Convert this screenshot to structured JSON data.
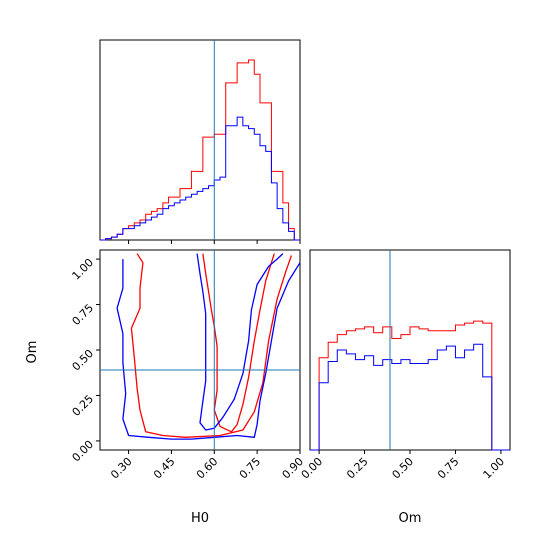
{
  "chart_data": {
    "type": "corner",
    "parameters": [
      "H0",
      "Om"
    ],
    "axis_labels": {
      "x_left": "H0",
      "y_left": "Om",
      "x_right": "Om"
    },
    "truth": {
      "H0": 0.6,
      "Om": 0.39
    },
    "colors": {
      "red": "#ff0000",
      "blue": "#0000ff",
      "truth": "#1f77b4"
    },
    "panels": [
      {
        "name": "H0 marginal histogram",
        "type": "step-histogram",
        "xlim": [
          0.2,
          0.9
        ],
        "bin_edges": [
          0.2,
          0.22,
          0.24,
          0.26,
          0.28,
          0.3,
          0.32,
          0.34,
          0.36,
          0.38,
          0.4,
          0.42,
          0.44,
          0.46,
          0.48,
          0.5,
          0.52,
          0.54,
          0.56,
          0.58,
          0.6,
          0.62,
          0.64,
          0.66,
          0.68,
          0.7,
          0.72,
          0.74,
          0.76,
          0.78,
          0.8,
          0.82,
          0.84,
          0.86,
          0.88,
          0.9
        ],
        "series": [
          {
            "name": "red",
            "color": "#ff0000",
            "values": [
              0,
              0.5,
              1,
              2,
              4,
              5,
              6,
              7,
              9,
              10,
              11,
              13,
              15,
              15,
              18,
              18,
              24,
              24,
              36,
              36,
              37,
              37,
              55,
              55,
              62,
              62,
              63,
              58,
              48,
              48,
              24,
              24,
              13,
              4,
              0
            ]
          },
          {
            "name": "blue",
            "color": "#0000ff",
            "values": [
              0,
              0.5,
              1,
              2,
              4,
              4,
              5,
              6,
              7,
              8,
              9,
              11,
              12,
              13,
              14,
              15,
              16,
              17,
              18,
              19,
              21,
              22,
              40,
              40,
              43,
              40,
              39,
              37,
              33,
              31,
              20,
              11,
              6,
              3,
              0
            ]
          }
        ]
      },
      {
        "name": "Om marginal histogram",
        "type": "step-histogram",
        "xlim": [
          -0.05,
          1.05
        ],
        "bin_edges": [
          -0.05,
          0.0,
          0.05,
          0.1,
          0.15,
          0.2,
          0.25,
          0.3,
          0.35,
          0.4,
          0.45,
          0.5,
          0.55,
          0.6,
          0.65,
          0.7,
          0.75,
          0.8,
          0.85,
          0.9,
          0.95,
          1.0,
          1.05
        ],
        "series": [
          {
            "name": "red",
            "color": "#ff0000",
            "values": [
              0,
              48,
              56,
              60,
              62,
              63,
              64,
              61,
              64,
              58,
              60,
              64,
              63,
              62,
              62,
              62,
              65,
              66,
              67,
              66,
              0,
              0
            ]
          },
          {
            "name": "blue",
            "color": "#0000ff",
            "values": [
              0,
              35,
              46,
              52,
              50,
              47,
              49,
              44,
              47,
              45,
              47,
              45,
              45,
              47,
              52,
              54,
              48,
              52,
              55,
              38,
              0,
              0
            ]
          }
        ]
      },
      {
        "name": "H0-Om 2D contours",
        "type": "contour",
        "xlim": [
          0.2,
          0.9
        ],
        "ylim": [
          -0.05,
          1.05
        ],
        "xticks": [
          "0.30",
          "0.45",
          "0.60",
          "0.75",
          "0.90"
        ],
        "yticks": [
          "0.00",
          "0.25",
          "0.50",
          "0.75",
          "1.00"
        ],
        "contours": [
          {
            "color": "#ff0000",
            "points": [
              [
                0.33,
                1.03
              ],
              [
                0.35,
                0.98
              ],
              [
                0.34,
                0.84
              ],
              [
                0.34,
                0.73
              ],
              [
                0.31,
                0.62
              ],
              [
                0.32,
                0.46
              ],
              [
                0.33,
                0.29
              ],
              [
                0.34,
                0.17
              ],
              [
                0.36,
                0.05
              ],
              [
                0.42,
                0.03
              ],
              [
                0.5,
                0.02
              ],
              [
                0.62,
                0.03
              ],
              [
                0.7,
                0.06
              ],
              [
                0.74,
                0.16
              ],
              [
                0.77,
                0.32
              ],
              [
                0.79,
                0.55
              ],
              [
                0.82,
                0.78
              ],
              [
                0.85,
                0.93
              ],
              [
                0.87,
                1.02
              ]
            ]
          },
          {
            "color": "#ff0000",
            "points": [
              [
                0.56,
                1.03
              ],
              [
                0.57,
                0.92
              ],
              [
                0.58,
                0.82
              ],
              [
                0.59,
                0.72
              ],
              [
                0.6,
                0.63
              ],
              [
                0.61,
                0.52
              ],
              [
                0.61,
                0.4
              ],
              [
                0.61,
                0.28
              ],
              [
                0.6,
                0.17
              ],
              [
                0.62,
                0.08
              ],
              [
                0.66,
                0.05
              ],
              [
                0.68,
                0.09
              ],
              [
                0.7,
                0.2
              ],
              [
                0.72,
                0.35
              ],
              [
                0.74,
                0.55
              ],
              [
                0.76,
                0.72
              ],
              [
                0.78,
                0.88
              ],
              [
                0.8,
                0.98
              ],
              [
                0.81,
                1.03
              ]
            ]
          },
          {
            "color": "#0000ff",
            "points": [
              [
                0.28,
                1.0
              ],
              [
                0.28,
                0.84
              ],
              [
                0.26,
                0.73
              ],
              [
                0.28,
                0.59
              ],
              [
                0.28,
                0.43
              ],
              [
                0.29,
                0.26
              ],
              [
                0.28,
                0.12
              ],
              [
                0.3,
                0.03
              ],
              [
                0.37,
                0.02
              ],
              [
                0.45,
                0.01
              ],
              [
                0.52,
                0.01
              ],
              [
                0.6,
                0.02
              ],
              [
                0.68,
                0.03
              ],
              [
                0.74,
                0.02
              ],
              [
                0.75,
                0.09
              ],
              [
                0.76,
                0.22
              ],
              [
                0.78,
                0.37
              ],
              [
                0.8,
                0.55
              ],
              [
                0.82,
                0.73
              ],
              [
                0.86,
                0.88
              ],
              [
                0.9,
                0.98
              ]
            ]
          },
          {
            "color": "#0000ff",
            "points": [
              [
                0.54,
                1.03
              ],
              [
                0.55,
                0.92
              ],
              [
                0.56,
                0.82
              ],
              [
                0.57,
                0.7
              ],
              [
                0.57,
                0.58
              ],
              [
                0.57,
                0.46
              ],
              [
                0.57,
                0.33
              ],
              [
                0.56,
                0.22
              ],
              [
                0.55,
                0.1
              ],
              [
                0.57,
                0.06
              ],
              [
                0.6,
                0.07
              ],
              [
                0.63,
                0.13
              ],
              [
                0.67,
                0.23
              ],
              [
                0.7,
                0.37
              ],
              [
                0.72,
                0.55
              ],
              [
                0.73,
                0.72
              ],
              [
                0.75,
                0.86
              ],
              [
                0.79,
                0.96
              ],
              [
                0.82,
                1.0
              ],
              [
                0.84,
                1.03
              ]
            ]
          }
        ]
      }
    ]
  }
}
